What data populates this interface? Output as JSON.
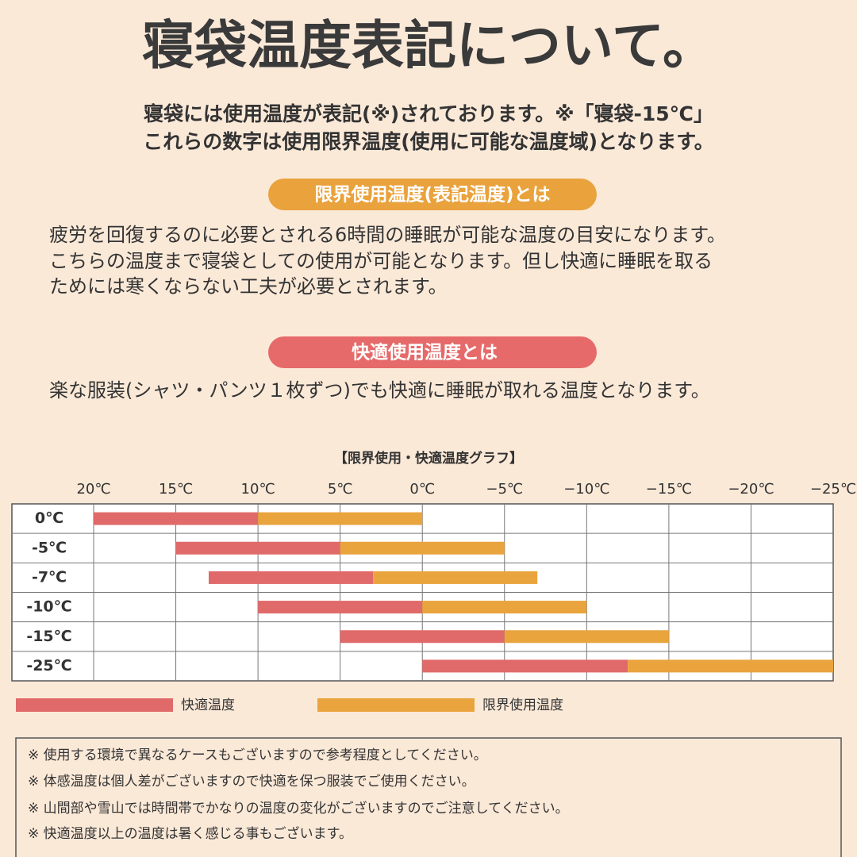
{
  "header": {
    "title": "寝袋温度表記について。",
    "intro": [
      "寝袋には使用温度が表記(※)されております。※「寝袋-15℃」",
      "これらの数字は使用限界温度(使用に可能な温度域)となります。"
    ]
  },
  "sections": [
    {
      "heading": "限界使用温度(表記温度)とは",
      "lines": [
        "疲労を回復するのに必要とされる6時間の睡眠が可能な温度の目安になります。",
        "こちらの温度まで寝袋としての使用が可能となります。但し快適に睡眠を取る",
        "ためには寒くならない工夫が必要とされます。"
      ]
    },
    {
      "heading": "快適使用温度とは",
      "lines": [
        "楽な服装(シャツ・パンツ１枚ずつ)でも快適に睡眠が取れる温度となります。"
      ]
    }
  ],
  "chart_data": {
    "type": "range-bar",
    "title": "【限界使用・快適温度グラフ】",
    "categories": [
      "0℃",
      "-5℃",
      "-7℃",
      "-10℃",
      "-15℃",
      "-25℃"
    ],
    "series": [
      {
        "name": "快適温度",
        "color": "#e06a6a",
        "from": [
          20,
          15,
          13,
          10,
          5,
          0
        ],
        "to": [
          10,
          5,
          3,
          0,
          -5,
          -12.5
        ]
      },
      {
        "name": "限界使用温度",
        "color": "#e9a43e",
        "from": [
          10,
          5,
          3,
          0,
          -5,
          -12.5
        ],
        "to": [
          0,
          -5,
          -7,
          -10,
          -15,
          -25
        ]
      }
    ],
    "xlim": [
      20,
      -25
    ],
    "xticks": [
      {
        "value": 20,
        "label": "20℃"
      },
      {
        "value": 15,
        "label": "15℃"
      },
      {
        "value": 10,
        "label": "10℃"
      },
      {
        "value": 5,
        "label": "5℃"
      },
      {
        "value": 0,
        "label": "0℃"
      },
      {
        "value": -5,
        "label": "−5℃"
      },
      {
        "value": -10,
        "label": "−10℃"
      },
      {
        "value": -15,
        "label": "−15℃"
      },
      {
        "value": -20,
        "label": "−20℃"
      },
      {
        "value": -25,
        "label": "−25℃"
      }
    ],
    "grid": true
  },
  "notes": [
    "※ 使用する環境で異なるケースもございますので参考程度としてください。",
    "※ 体感温度は個人差がございますので快適を保つ服装でご使用ください。",
    "※ 山間部や雪山では時間帯でかなりの温度の変化がございますのでご注意してください。",
    "※ 快適温度以上の温度は暑く感じる事もございます。"
  ]
}
